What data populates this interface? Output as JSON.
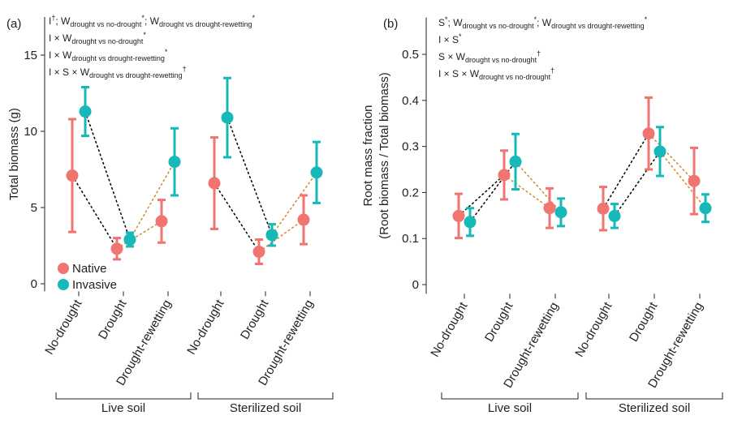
{
  "chart_data": [
    {
      "type": "errorbar-point",
      "panel_label": "(a)",
      "y_label": [
        "Total biomass (g)"
      ],
      "categories": [
        "No-drought",
        "Drought",
        "Drought-rewetting",
        "No-drought",
        "Drought",
        "Drought-rewetting"
      ],
      "groups": [
        "Live soil",
        "Sterilized soil"
      ],
      "ylim": [
        -0.5,
        17.5
      ],
      "yticks": [
        0,
        5,
        10,
        15
      ],
      "connector_colors": [
        "#000000",
        "#d08a2c"
      ],
      "legend": true,
      "annotations": [
        [
          {
            "text": "I"
          },
          {
            "text": "†",
            "style": "sup"
          },
          {
            "text": ";  W"
          },
          {
            "text": "drought vs no-drought",
            "style": "sub"
          },
          {
            "text": "*",
            "style": "sup"
          },
          {
            "text": ";  W"
          },
          {
            "text": "drought vs drought-rewetting",
            "style": "sub"
          },
          {
            "text": "*",
            "style": "sup"
          }
        ],
        [
          {
            "text": "I × W"
          },
          {
            "text": "drought vs no-drought",
            "style": "sub"
          },
          {
            "text": "*",
            "style": "sup"
          }
        ],
        [
          {
            "text": "I × W"
          },
          {
            "text": "drought vs drought-rewetting",
            "style": "sub"
          },
          {
            "text": "*",
            "style": "sup"
          }
        ],
        [
          {
            "text": "I × S × W"
          },
          {
            "text": "drought vs drought-rewetting",
            "style": "sub"
          },
          {
            "text": "†",
            "style": "sup"
          }
        ]
      ],
      "series": [
        {
          "name": "Native",
          "color": "#f07470",
          "values": [
            7.1,
            2.3,
            4.1,
            6.6,
            2.1,
            4.2
          ],
          "errors": [
            3.7,
            0.7,
            1.4,
            3.0,
            0.8,
            1.6
          ]
        },
        {
          "name": "Invasive",
          "color": "#17b8b8",
          "values": [
            11.3,
            2.9,
            8.0,
            10.9,
            3.2,
            7.3
          ],
          "errors": [
            1.6,
            0.45,
            2.2,
            2.6,
            0.7,
            2.0
          ]
        }
      ]
    },
    {
      "type": "errorbar-point",
      "panel_label": "(b)",
      "y_label": [
        "Root mass fraction",
        "(Root biomass / Total biomass)"
      ],
      "categories": [
        "No-drought",
        "Drought",
        "Drought-rewetting",
        "No-drought",
        "Drought",
        "Drought-rewetting"
      ],
      "groups": [
        "Live soil",
        "Sterilized soil"
      ],
      "ylim": [
        -0.02,
        0.58
      ],
      "yticks": [
        0,
        0.1,
        0.2,
        0.3,
        0.4,
        0.5
      ],
      "connector_colors": [
        "#000000",
        "#d08a2c"
      ],
      "legend": false,
      "annotations": [
        [
          {
            "text": "S"
          },
          {
            "text": "*",
            "style": "sup"
          },
          {
            "text": ";  W"
          },
          {
            "text": "drought vs no-drought",
            "style": "sub"
          },
          {
            "text": "*",
            "style": "sup"
          },
          {
            "text": ";  W"
          },
          {
            "text": "drought vs drought-rewetting",
            "style": "sub"
          },
          {
            "text": "*",
            "style": "sup"
          }
        ],
        [
          {
            "text": "I × S"
          },
          {
            "text": "*",
            "style": "sup"
          }
        ],
        [
          {
            "text": "S × W"
          },
          {
            "text": "drought vs no-drought",
            "style": "sub"
          },
          {
            "text": "†",
            "style": "sup"
          }
        ],
        [
          {
            "text": "I × S × W"
          },
          {
            "text": "drought vs no-drought",
            "style": "sub"
          },
          {
            "text": "†",
            "style": "sup"
          }
        ]
      ],
      "series": [
        {
          "name": "Native",
          "color": "#f07470",
          "values": [
            0.149,
            0.238,
            0.166,
            0.165,
            0.328,
            0.225
          ],
          "errors": [
            0.048,
            0.053,
            0.043,
            0.047,
            0.078,
            0.072
          ]
        },
        {
          "name": "Invasive",
          "color": "#17b8b8",
          "values": [
            0.136,
            0.267,
            0.157,
            0.149,
            0.289,
            0.166
          ],
          "errors": [
            0.03,
            0.06,
            0.03,
            0.026,
            0.053,
            0.03
          ]
        }
      ]
    }
  ]
}
